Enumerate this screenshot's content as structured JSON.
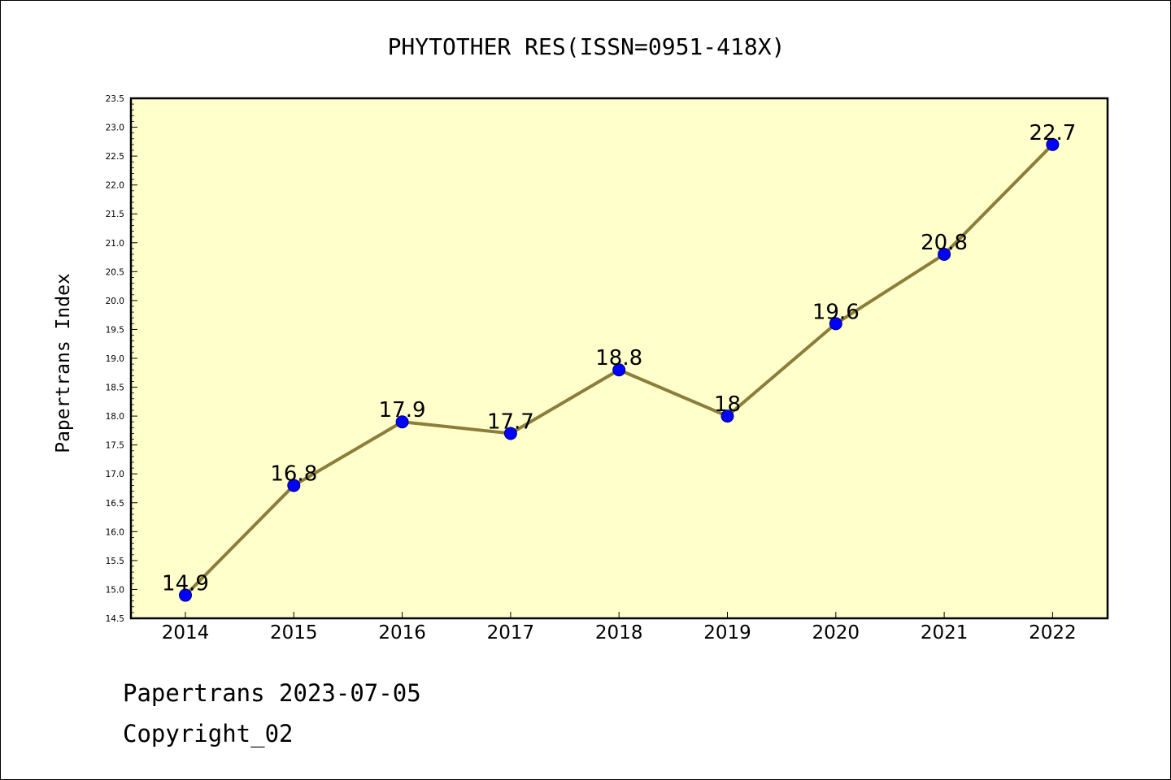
{
  "chart_data": {
    "type": "line",
    "title": "PHYTOTHER RES(ISSN=0951-418X)",
    "xlabel": "",
    "ylabel": "Papertrans Index",
    "categories": [
      "2014",
      "2015",
      "2016",
      "2017",
      "2018",
      "2019",
      "2020",
      "2021",
      "2022"
    ],
    "values": [
      14.9,
      16.8,
      17.9,
      17.7,
      18.8,
      18,
      19.6,
      20.8,
      22.7
    ],
    "data_labels": [
      "14.9",
      "16.8",
      "17.9",
      "17.7",
      "18.8",
      "18",
      "19.6",
      "20.8",
      "22.7"
    ],
    "ylim": [
      14.5,
      23.5
    ],
    "yticks": [
      "14.5",
      "15.0",
      "15.5",
      "16.0",
      "16.5",
      "17.0",
      "17.5",
      "18.0",
      "18.5",
      "19.0",
      "19.5",
      "20.0",
      "20.5",
      "21.0",
      "21.5",
      "22.0",
      "22.5",
      "23.0",
      "23.5"
    ],
    "grid": false,
    "colors": {
      "plot_background": "#ffffcc",
      "line": "#8c7d3a",
      "marker": "#0000ff",
      "marker_edge": "#000080"
    }
  },
  "footer": {
    "line1": "Papertrans 2023-07-05",
    "line2": "Copyright_02"
  }
}
